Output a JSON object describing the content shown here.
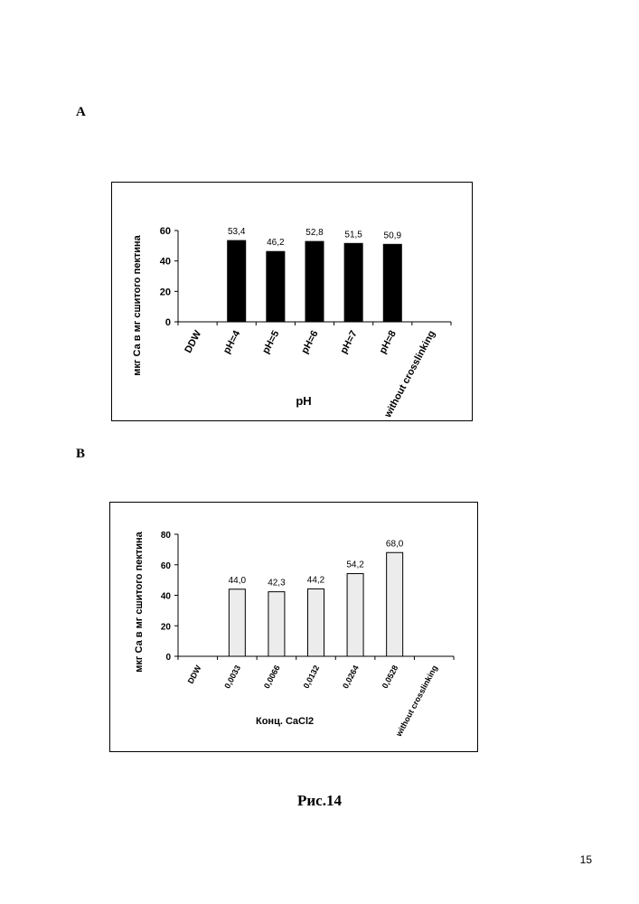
{
  "panels": [
    {
      "letter": "A"
    },
    {
      "letter": "B"
    }
  ],
  "chart_data": [
    {
      "type": "bar",
      "categories": [
        "DDW",
        "pH=4",
        "pH=5",
        "pH=6",
        "pH=7",
        "pH=8",
        "without crosslinking"
      ],
      "values": [
        null,
        53.4,
        46.2,
        52.8,
        51.5,
        50.9,
        null
      ],
      "data_labels": [
        "",
        "53,4",
        "46,2",
        "52,8",
        "51,5",
        "50,9",
        ""
      ],
      "yticks": [
        "0",
        "20",
        "40",
        "60"
      ],
      "xlabel": "pH",
      "ylabel": "мкг Са  в  мг  сшитого  пектина",
      "ylim": [
        0,
        60
      ],
      "bar_color": "#000000",
      "grid": false
    },
    {
      "type": "bar",
      "categories": [
        "DDW",
        "0,0033",
        "0,0066",
        "0,0132",
        "0,0264",
        "0,0528",
        "without crosslinking"
      ],
      "values": [
        null,
        44.0,
        42.3,
        44.2,
        54.2,
        68.0,
        null
      ],
      "data_labels": [
        "",
        "44,0",
        "42,3",
        "44,2",
        "54,2",
        "68,0",
        ""
      ],
      "yticks": [
        "0",
        "20",
        "40",
        "60",
        "80"
      ],
      "xlabel": "Конц. CaCl2",
      "ylabel": "мкг Са в мг сшитого пектина",
      "ylim": [
        0,
        80
      ],
      "bar_color": "#ececec",
      "grid": false
    }
  ],
  "figure_caption": "Рис.14",
  "page_number": "15"
}
